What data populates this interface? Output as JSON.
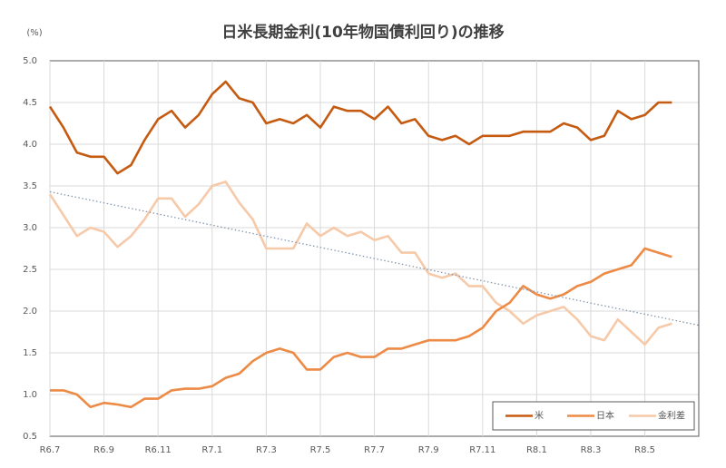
{
  "chart_data": {
    "type": "line",
    "title": "日米長期金利(10年物国債利回り)の推移",
    "y_axis_label": "(%)",
    "categories": [
      "R6.7",
      null,
      null,
      null,
      "R6.9",
      null,
      null,
      null,
      "R6.11",
      null,
      null,
      null,
      "R7.1",
      null,
      null,
      null,
      "R7.3",
      null,
      null,
      null,
      "R7.5",
      null,
      null,
      null,
      "R7.7",
      null,
      null,
      null,
      "R7.9",
      null,
      null,
      null,
      "R7.11",
      null,
      null,
      null,
      "R8.1",
      null,
      null,
      null,
      "R8.3",
      null,
      null,
      null,
      "R8.5",
      null,
      null
    ],
    "series": [
      {
        "name": "米",
        "color": "#c55a11",
        "values": [
          4.45,
          4.2,
          3.9,
          3.85,
          3.85,
          3.65,
          3.75,
          4.05,
          4.3,
          4.4,
          4.2,
          4.35,
          4.6,
          4.75,
          4.55,
          4.5,
          4.25,
          4.3,
          4.25,
          4.35,
          4.2,
          4.45,
          4.4,
          4.4,
          4.3,
          4.45,
          4.25,
          4.3,
          4.1,
          4.05,
          4.1,
          4.0,
          4.1,
          4.1,
          4.1,
          4.15,
          4.15,
          4.15,
          4.25,
          4.2,
          4.05,
          4.1,
          4.4,
          4.3,
          4.35,
          4.5,
          4.5
        ]
      },
      {
        "name": "日本",
        "color": "#ed8a45",
        "values": [
          1.05,
          1.05,
          1.0,
          0.85,
          0.9,
          0.88,
          0.85,
          0.95,
          0.95,
          1.05,
          1.07,
          1.07,
          1.1,
          1.2,
          1.25,
          1.4,
          1.5,
          1.55,
          1.5,
          1.3,
          1.3,
          1.45,
          1.5,
          1.45,
          1.45,
          1.55,
          1.55,
          1.6,
          1.65,
          1.65,
          1.65,
          1.7,
          1.8,
          2.0,
          2.1,
          2.3,
          2.2,
          2.15,
          2.2,
          2.3,
          2.35,
          2.45,
          2.5,
          2.55,
          2.75,
          2.7,
          2.65
        ]
      },
      {
        "name": "金利差",
        "color": "#f6c9a8",
        "values": [
          3.4,
          3.15,
          2.9,
          3.0,
          2.95,
          2.77,
          2.9,
          3.1,
          3.35,
          3.35,
          3.13,
          3.28,
          3.5,
          3.55,
          3.3,
          3.1,
          2.75,
          2.75,
          2.75,
          3.05,
          2.9,
          3.0,
          2.9,
          2.95,
          2.85,
          2.9,
          2.7,
          2.7,
          2.45,
          2.4,
          2.45,
          2.3,
          2.3,
          2.1,
          2.0,
          1.85,
          1.95,
          2.0,
          2.05,
          1.9,
          1.7,
          1.65,
          1.9,
          1.75,
          1.6,
          1.8,
          1.85
        ]
      }
    ],
    "trendline": {
      "color": "#8497b0",
      "values": [
        3.43,
        1.83
      ]
    },
    "ylim": [
      0.5,
      5.0
    ],
    "yticks": [
      0.5,
      {
        "value": 1.0,
        "label": "1.0"
      },
      1.5,
      {
        "value": 2.0,
        "label": "2.0"
      },
      2.5,
      {
        "value": 3.0,
        "label": "3.0"
      },
      3.5,
      {
        "value": 4.0,
        "label": "4.0"
      },
      4.5,
      {
        "value": 5.0,
        "label": "5.0"
      }
    ],
    "grid": true,
    "legend": "bottom-right"
  }
}
